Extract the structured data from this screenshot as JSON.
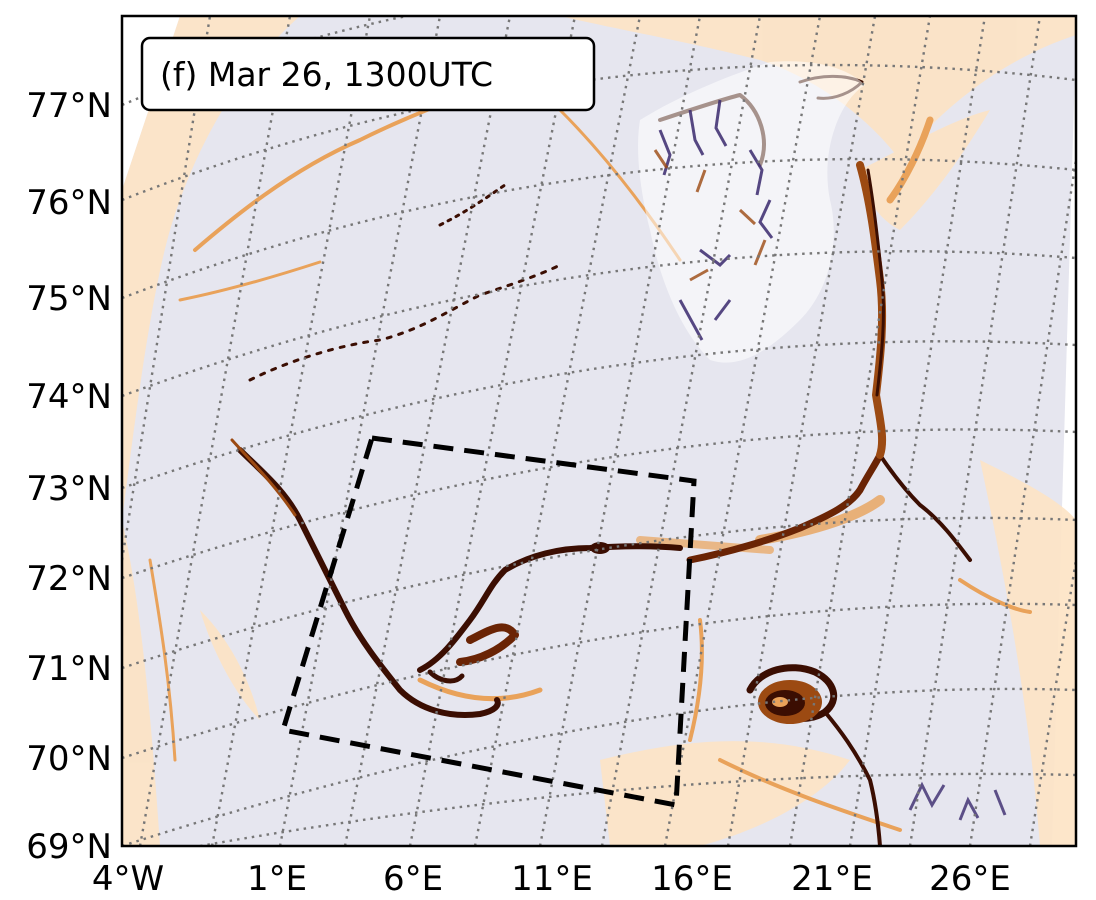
{
  "panel_label": "(f) Mar 26, 1300UTC",
  "lat_labels": [
    "77°N",
    "76°N",
    "75°N",
    "74°N",
    "73°N",
    "72°N",
    "71°N",
    "70°N",
    "69°N"
  ],
  "lon_labels": [
    "4°W",
    "1°E",
    "6°E",
    "11°E",
    "16°E",
    "21°E",
    "26°E"
  ],
  "colors": {
    "background_field": "#e6e6ef",
    "positive_light": "#fde3c4",
    "positive_mid": "#e9a25a",
    "positive_strong": "#9c4a12",
    "positive_max": "#3b0e02",
    "negative": "#3a2a6e",
    "gridline": "#777777",
    "box": "#000000"
  },
  "analysis_box": {
    "style": "dashed",
    "color": "black"
  }
}
